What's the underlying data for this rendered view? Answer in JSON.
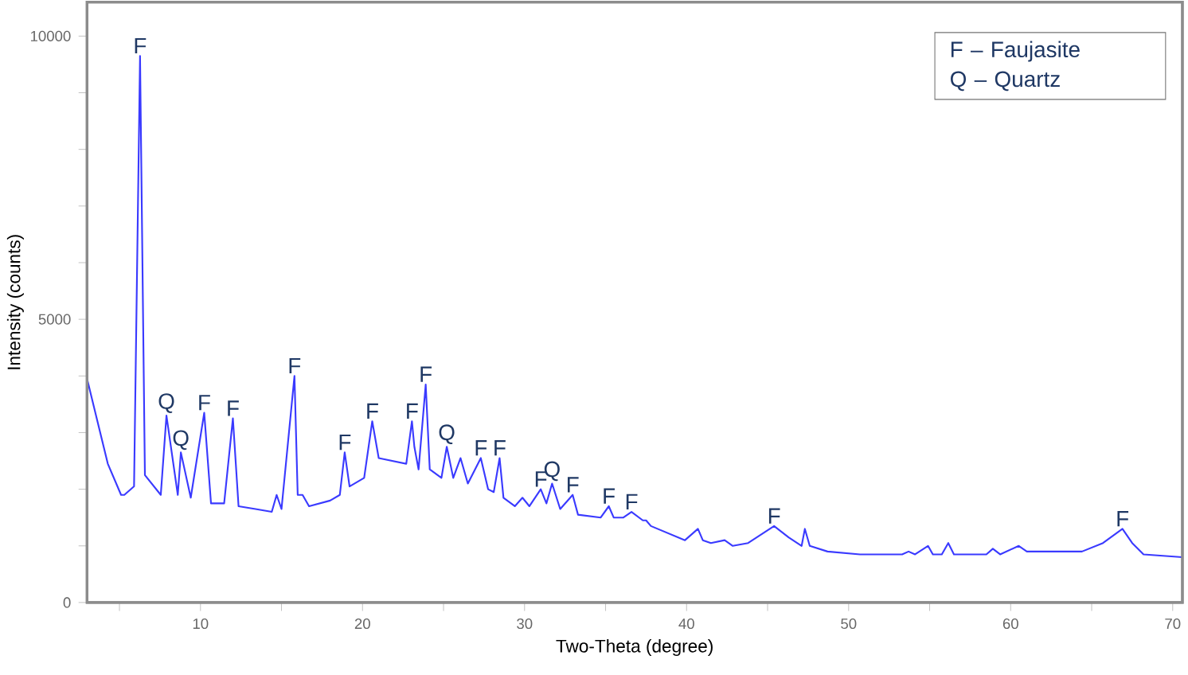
{
  "chart_data": {
    "type": "line",
    "xlabel": "Two-Theta (degree)",
    "ylabel": "Intensity (counts)",
    "color": "#3a3aff",
    "x": [
      3,
      4.28,
      5.1,
      5.3,
      5.9,
      6.27,
      6.57,
      7.55,
      7.9,
      8.6,
      8.79,
      9.4,
      10.23,
      10.65,
      11.46,
      12.0,
      12.35,
      13.4,
      14.4,
      14.7,
      15.0,
      15.8,
      16.0,
      16.3,
      16.7,
      18.0,
      18.6,
      18.9,
      19.2,
      20.1,
      20.6,
      21.0,
      22.7,
      23.05,
      23.2,
      23.46,
      23.9,
      24.15,
      24.87,
      25.2,
      25.6,
      26.05,
      26.5,
      27.3,
      27.75,
      28.1,
      28.46,
      28.7,
      29.4,
      29.87,
      30.3,
      31.0,
      31.35,
      31.7,
      32.2,
      32.97,
      33.3,
      34.7,
      35.2,
      35.5,
      36.1,
      36.6,
      37.3,
      37.5,
      37.8,
      39.9,
      40.7,
      41.0,
      41.5,
      42.35,
      42.85,
      43.8,
      45.4,
      46.3,
      47.1,
      47.3,
      47.6,
      48.7,
      50.7,
      53.3,
      53.7,
      54.1,
      54.9,
      55.2,
      55.75,
      56.15,
      56.5,
      58.5,
      58.9,
      59.35,
      60.5,
      61.0,
      64.4,
      65.7,
      66.9,
      67.5,
      68.2,
      70.6
    ],
    "values": [
      3950,
      2450,
      1900,
      1900,
      2050,
      9650,
      2250,
      1900,
      3300,
      1900,
      2650,
      1850,
      3350,
      1750,
      1750,
      3250,
      1700,
      1650,
      1600,
      1900,
      1650,
      4000,
      1900,
      1900,
      1700,
      1800,
      1900,
      2650,
      2050,
      2200,
      3200,
      2550,
      2450,
      3200,
      2750,
      2350,
      3850,
      2350,
      2200,
      2750,
      2200,
      2550,
      2100,
      2550,
      2000,
      1950,
      2550,
      1850,
      1700,
      1850,
      1700,
      2000,
      1750,
      2100,
      1650,
      1900,
      1550,
      1500,
      1700,
      1500,
      1500,
      1600,
      1450,
      1450,
      1350,
      1100,
      1300,
      1100,
      1050,
      1100,
      1000,
      1050,
      1350,
      1150,
      1000,
      1300,
      1000,
      900,
      850,
      850,
      900,
      850,
      1000,
      850,
      850,
      1050,
      850,
      850,
      950,
      850,
      1000,
      900,
      900,
      1050,
      1300,
      1050,
      850,
      800
    ],
    "xlim": [
      3,
      70.6
    ],
    "ylim": [
      0,
      10600
    ],
    "xticks": [
      {
        "value": 5,
        "label": null
      },
      10,
      {
        "value": 15,
        "label": null
      },
      20,
      {
        "value": 25,
        "label": null
      },
      30,
      {
        "value": 35,
        "label": null
      },
      40,
      {
        "value": 45,
        "label": null
      },
      50,
      {
        "value": 55,
        "label": null
      },
      60,
      {
        "value": 65,
        "label": null
      },
      70
    ],
    "yticks": [
      0,
      {
        "value": 1000,
        "label": null
      },
      {
        "value": 2000,
        "label": null
      },
      {
        "value": 3000,
        "label": null
      },
      {
        "value": 4000,
        "label": null
      },
      5000,
      {
        "value": 6000,
        "label": null
      },
      {
        "value": 7000,
        "label": null
      },
      {
        "value": 8000,
        "label": null
      },
      {
        "value": 9000,
        "label": null
      },
      10000
    ],
    "annotations": [
      {
        "text": "F",
        "x": 6.27,
        "y": 9650
      },
      {
        "text": "Q",
        "x": 7.9,
        "y": 3300
      },
      {
        "text": "Q",
        "x": 8.79,
        "y": 2650
      },
      {
        "text": "F",
        "x": 10.23,
        "y": 3350
      },
      {
        "text": "F",
        "x": 12.0,
        "y": 3250
      },
      {
        "text": "F",
        "x": 15.8,
        "y": 4000
      },
      {
        "text": "F",
        "x": 18.9,
        "y": 2650
      },
      {
        "text": "F",
        "x": 20.6,
        "y": 3200
      },
      {
        "text": "F",
        "x": 23.05,
        "y": 3200
      },
      {
        "text": "F",
        "x": 23.9,
        "y": 3850
      },
      {
        "text": "Q",
        "x": 25.2,
        "y": 2750
      },
      {
        "text": "F",
        "x": 27.3,
        "y": 2550
      },
      {
        "text": "F",
        "x": 28.46,
        "y": 2550
      },
      {
        "text": "F",
        "x": 31.0,
        "y": 2000
      },
      {
        "text": "Q",
        "x": 31.7,
        "y": 2100
      },
      {
        "text": "F",
        "x": 32.97,
        "y": 1900
      },
      {
        "text": "F",
        "x": 35.2,
        "y": 1700
      },
      {
        "text": "F",
        "x": 36.6,
        "y": 1600
      },
      {
        "text": "F",
        "x": 45.4,
        "y": 1350
      },
      {
        "text": "F",
        "x": 66.9,
        "y": 1300
      },
      "F – Faujasite",
      "Q – Quartz"
    ]
  }
}
